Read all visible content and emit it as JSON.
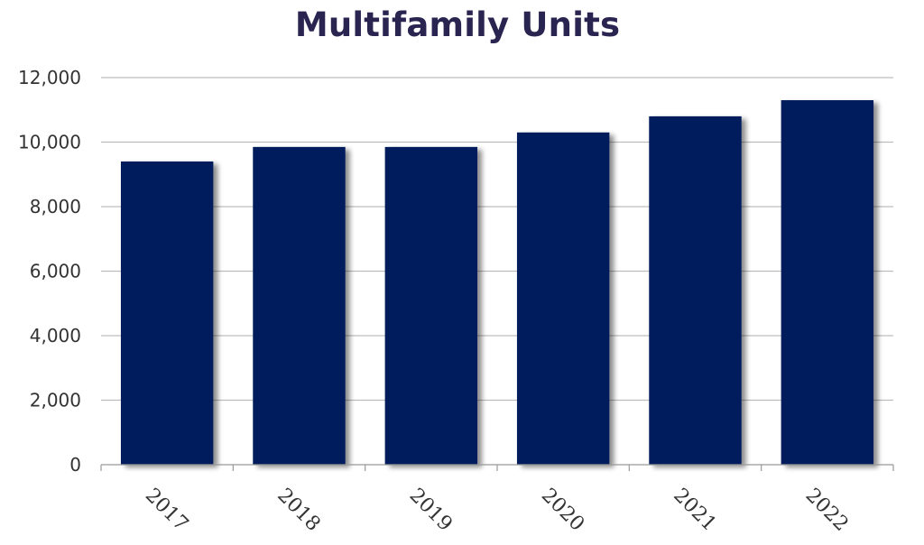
{
  "chart_data": {
    "type": "bar",
    "title": "Multifamily Units",
    "xlabel": "",
    "ylabel": "",
    "categories": [
      "2017",
      "2018",
      "2019",
      "2020",
      "2021",
      "2022"
    ],
    "values": [
      9400,
      9850,
      9850,
      10300,
      10800,
      11300
    ],
    "ylim": [
      0,
      12000
    ],
    "yticks": [
      "0",
      "2,000",
      "4,000",
      "6,000",
      "8,000",
      "10,000",
      "12,000"
    ],
    "grid": true,
    "legend": "none",
    "colors": {
      "bar": "#001f5b",
      "title": "#2a2550",
      "grid": "#bdbdbd",
      "axis": "#999999"
    }
  }
}
